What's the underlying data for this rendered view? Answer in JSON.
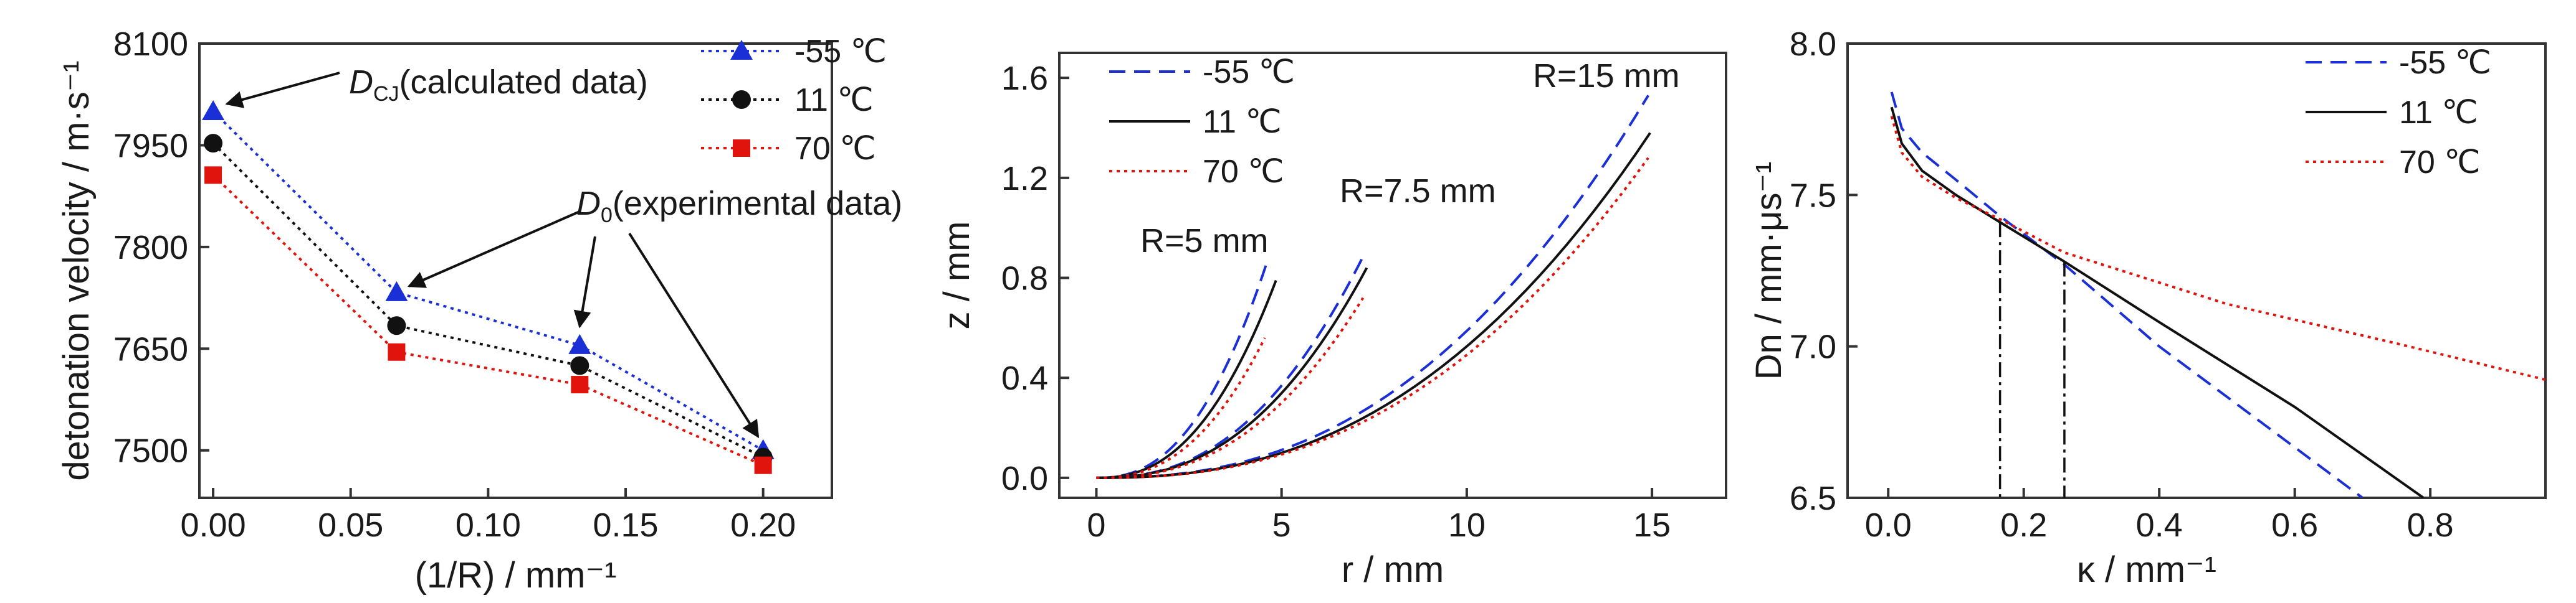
{
  "colors": {
    "c_m55": "#1a2fd6",
    "c_11": "#111111",
    "c_70": "#e0140c",
    "axis": "#333333"
  },
  "chart_data": [
    {
      "type": "line",
      "ylabel": "detonation velocity / m·s⁻¹",
      "xlabel": "(1/R) / mm⁻¹",
      "xlim": [
        -0.005,
        0.225
      ],
      "ylim": [
        7430,
        8100
      ],
      "xticks": [
        "0.00",
        "0.05",
        "0.10",
        "0.15",
        "0.20"
      ],
      "yticks": [
        "7500",
        "7650",
        "7800",
        "7950",
        "8100"
      ],
      "series": [
        {
          "name": "-55 ℃",
          "x": [
            0.0,
            0.0667,
            0.1333,
            0.2
          ],
          "y": [
            8000,
            7733,
            7655,
            7500
          ],
          "marker": "triangle",
          "color": "#1a2fd6"
        },
        {
          "name": "11 ℃",
          "x": [
            0.0,
            0.0667,
            0.1333,
            0.2
          ],
          "y": [
            7953,
            7684,
            7625,
            7490
          ],
          "marker": "circle",
          "color": "#111111"
        },
        {
          "name": "70 ℃",
          "x": [
            0.0,
            0.0667,
            0.1333,
            0.2
          ],
          "y": [
            7906,
            7645,
            7597,
            7478
          ],
          "marker": "square",
          "color": "#e0140c"
        }
      ],
      "annotations": [
        {
          "main": "D",
          "sub": "CJ",
          "text": "(calculated data)"
        },
        {
          "main": "D",
          "sub": "0",
          "text": "(experimental data)"
        }
      ],
      "legend": "top-right"
    },
    {
      "type": "line",
      "ylabel": "z / mm",
      "xlabel": "r / mm",
      "xlim": [
        -1,
        17
      ],
      "ylim": [
        -0.08,
        1.7
      ],
      "xticks": [
        "0",
        "5",
        "10",
        "15"
      ],
      "yticks": [
        "0.0",
        "0.4",
        "0.8",
        "1.2",
        "1.6"
      ],
      "series": [
        {
          "name": "-55 ℃",
          "style": "dash",
          "color": "#1a2fd6"
        },
        {
          "name": "11 ℃",
          "style": "solid",
          "color": "#111111"
        },
        {
          "name": "70 ℃",
          "style": "dot",
          "color": "#e0140c"
        }
      ],
      "curves": [
        {
          "R": 5,
          "label": "R=5 mm",
          "ends": [
            {
              "r": 4.6,
              "z": 0.86
            },
            {
              "r": 4.85,
              "z": 0.79
            },
            {
              "r": 4.55,
              "z": 0.56
            }
          ]
        },
        {
          "R": 7.5,
          "label": "R=7.5 mm",
          "ends": [
            {
              "r": 7.25,
              "z": 0.9
            },
            {
              "r": 7.3,
              "z": 0.84
            },
            {
              "r": 7.2,
              "z": 0.72
            }
          ]
        },
        {
          "R": 15,
          "label": "R=15 mm",
          "ends": [
            {
              "r": 14.9,
              "z": 1.53
            },
            {
              "r": 14.95,
              "z": 1.38
            },
            {
              "r": 14.9,
              "z": 1.28
            }
          ]
        }
      ],
      "legend": "top-left"
    },
    {
      "type": "line",
      "ylabel": "Dn / mm·μs⁻¹",
      "xlabel": "κ / mm⁻¹",
      "xlim": [
        -0.06,
        0.97
      ],
      "ylim": [
        6.5,
        8.0
      ],
      "xticks": [
        "0.0",
        "0.2",
        "0.4",
        "0.6",
        "0.8"
      ],
      "yticks": [
        "6.5",
        "7.0",
        "7.5",
        "8.0"
      ],
      "series": [
        {
          "name": "-55 ℃",
          "style": "dash",
          "color": "#1a2fd6",
          "x": [
            0.005,
            0.02,
            0.05,
            0.1,
            0.165,
            0.26,
            0.4,
            0.55,
            0.7
          ],
          "y": [
            7.84,
            7.72,
            7.64,
            7.55,
            7.43,
            7.27,
            7.0,
            6.75,
            6.5
          ]
        },
        {
          "name": "11 ℃",
          "style": "solid",
          "color": "#111111",
          "x": [
            0.005,
            0.02,
            0.05,
            0.1,
            0.165,
            0.26,
            0.4,
            0.6,
            0.79
          ],
          "y": [
            7.79,
            7.67,
            7.58,
            7.5,
            7.41,
            7.28,
            7.08,
            6.8,
            6.5
          ]
        },
        {
          "name": "70 ℃",
          "style": "dot",
          "color": "#e0140c",
          "x": [
            0.005,
            0.02,
            0.05,
            0.1,
            0.165,
            0.26,
            0.5,
            0.75,
            0.97
          ],
          "y": [
            7.76,
            7.64,
            7.56,
            7.49,
            7.42,
            7.31,
            7.14,
            7.01,
            6.89
          ]
        }
      ],
      "vlines": [
        0.165,
        0.26
      ],
      "legend": "top-right"
    }
  ]
}
